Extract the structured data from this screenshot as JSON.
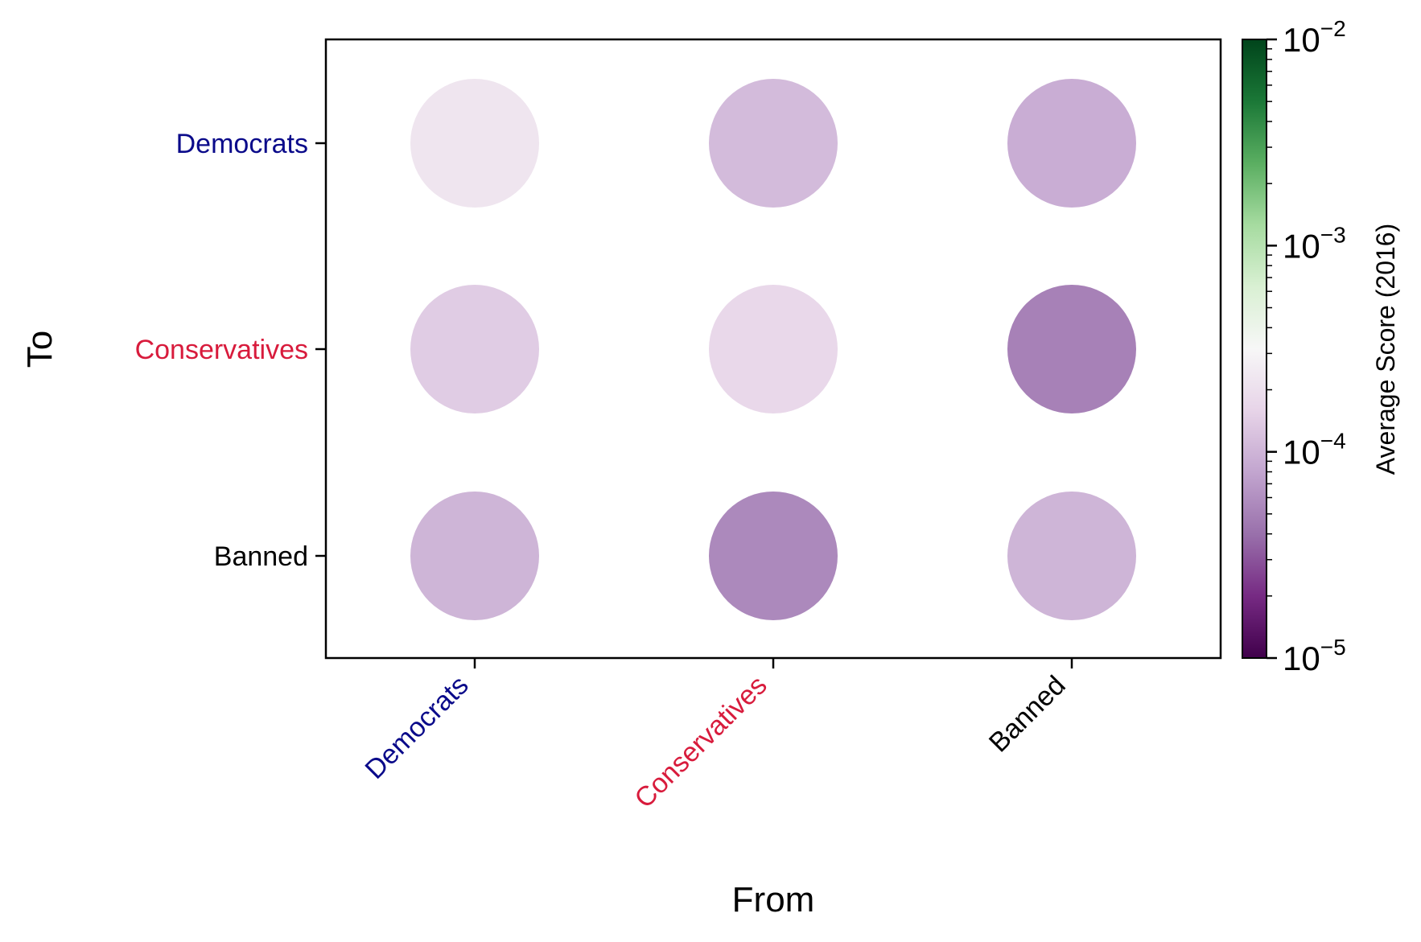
{
  "chart_data": {
    "type": "scatter",
    "subtype": "bubble-matrix",
    "xlabel": "From",
    "ylabel": "To",
    "x_categories": [
      "Democrats",
      "Conservatives",
      "Banned"
    ],
    "y_categories": [
      "Democrats",
      "Conservatives",
      "Banned"
    ],
    "category_colors": {
      "Democrats": "#0a0a8a",
      "Conservatives": "#d81b3c",
      "Banned": "#000000"
    },
    "points": [
      {
        "from": "Democrats",
        "to": "Democrats",
        "value": 0.00022
      },
      {
        "from": "Conservatives",
        "to": "Democrats",
        "value": 0.00011
      },
      {
        "from": "Banned",
        "to": "Democrats",
        "value": 9e-05
      },
      {
        "from": "Democrats",
        "to": "Conservatives",
        "value": 0.00014
      },
      {
        "from": "Conservatives",
        "to": "Conservatives",
        "value": 0.00017
      },
      {
        "from": "Banned",
        "to": "Conservatives",
        "value": 5e-05
      },
      {
        "from": "Democrats",
        "to": "Banned",
        "value": 0.0001
      },
      {
        "from": "Conservatives",
        "to": "Banned",
        "value": 5.5e-05
      },
      {
        "from": "Banned",
        "to": "Banned",
        "value": 0.0001
      }
    ],
    "colorbar": {
      "label": "Average Score (2016)",
      "scale": "log",
      "colormap": "PRGn",
      "vmin": 1e-05,
      "vmax": 0.01,
      "ticks": [
        {
          "value": 0.01,
          "base": "10",
          "exp": "−2"
        },
        {
          "value": 0.001,
          "base": "10",
          "exp": "−3"
        },
        {
          "value": 0.0001,
          "base": "10",
          "exp": "−4"
        },
        {
          "value": 1e-05,
          "base": "10",
          "exp": "−5"
        }
      ]
    },
    "grid": false,
    "legend": "none"
  }
}
